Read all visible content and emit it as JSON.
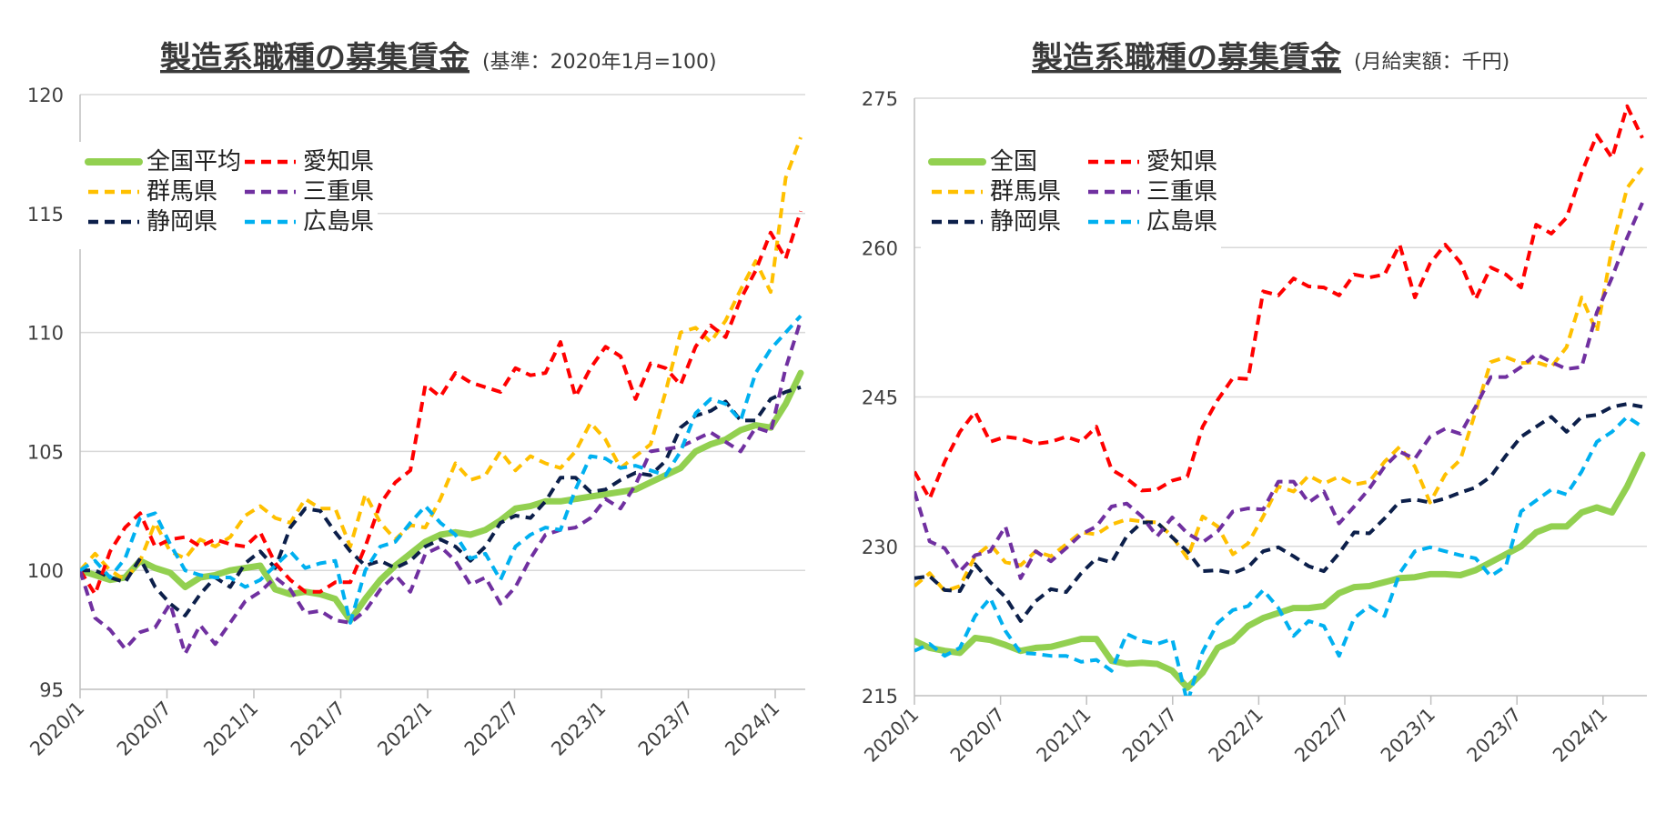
{
  "chart_data": [
    {
      "type": "line",
      "title": "製造系職種の募集賃金",
      "subtitle": "(基準：2020年1月=100)",
      "x_tick_labels": [
        "2020/1",
        "2020/7",
        "2021/1",
        "2021/7",
        "2022/1",
        "2022/7",
        "2023/1",
        "2023/7",
        "2024/1"
      ],
      "y_ticks": [
        95,
        100,
        105,
        110,
        115,
        120
      ],
      "ylim": [
        95,
        120
      ],
      "grid": true,
      "legend_position": "top-left",
      "series": [
        {
          "name": "全国平均",
          "color": "#92d050",
          "style": "solid",
          "values": [
            100.0,
            99.8,
            99.6,
            99.7,
            100.4,
            100.1,
            99.9,
            99.3,
            99.7,
            99.8,
            100.0,
            100.1,
            100.2,
            99.2,
            99.0,
            99.1,
            99.0,
            98.8,
            97.9,
            98.8,
            99.6,
            100.2,
            100.7,
            101.2,
            101.5,
            101.6,
            101.5,
            101.7,
            102.1,
            102.6,
            102.7,
            102.9,
            102.9,
            103.0,
            103.1,
            103.2,
            103.3,
            103.4,
            103.7,
            104.0,
            104.3,
            105.0,
            105.3,
            105.5,
            105.9,
            106.1,
            106.0,
            107.0,
            108.3
          ]
        },
        {
          "name": "群馬県",
          "color": "#ffc000",
          "style": "dashed",
          "values": [
            100.0,
            100.7,
            100.0,
            99.6,
            100.4,
            102.0,
            100.8,
            100.5,
            101.3,
            101.0,
            101.4,
            102.3,
            102.7,
            102.2,
            102.0,
            103.0,
            102.6,
            102.6,
            101.0,
            103.2,
            102.0,
            101.3,
            101.9,
            101.8,
            103.0,
            104.5,
            103.8,
            104.0,
            105.0,
            104.2,
            104.8,
            104.5,
            104.3,
            105.0,
            106.2,
            105.5,
            104.3,
            104.8,
            105.3,
            107.5,
            110.0,
            110.2,
            109.6,
            110.5,
            111.8,
            113.0,
            111.7,
            116.5,
            118.2
          ]
        },
        {
          "name": "静岡県",
          "color": "#0c1f4a",
          "style": "dashed",
          "values": [
            100.0,
            100.0,
            99.7,
            99.5,
            100.5,
            99.3,
            98.6,
            98.1,
            99.0,
            99.7,
            99.3,
            100.3,
            100.8,
            100.1,
            101.8,
            102.6,
            102.5,
            101.6,
            100.8,
            100.2,
            100.4,
            100.1,
            100.4,
            101.0,
            101.3,
            101.0,
            100.4,
            101.0,
            102.0,
            102.3,
            102.2,
            102.9,
            103.9,
            103.9,
            103.3,
            103.4,
            103.8,
            104.1,
            104.0,
            104.6,
            106.0,
            106.5,
            106.7,
            107.1,
            106.3,
            106.3,
            107.2,
            107.5,
            107.7
          ]
        },
        {
          "name": "愛知県",
          "color": "#ff0000",
          "style": "dashed",
          "values": [
            100.0,
            99.0,
            100.8,
            101.8,
            102.4,
            101.0,
            101.3,
            101.4,
            101.0,
            101.3,
            101.1,
            101.0,
            101.6,
            100.3,
            99.6,
            99.1,
            99.1,
            99.5,
            99.5,
            101.0,
            102.8,
            103.7,
            104.2,
            107.8,
            107.3,
            108.3,
            107.9,
            107.7,
            107.5,
            108.5,
            108.2,
            108.3,
            109.6,
            107.3,
            108.5,
            109.4,
            109.0,
            107.2,
            108.7,
            108.5,
            107.8,
            109.4,
            110.3,
            109.8,
            111.4,
            112.6,
            114.2,
            113.1,
            115.1
          ]
        },
        {
          "name": "三重県",
          "color": "#7030a0",
          "style": "dashed",
          "values": [
            100.0,
            98.0,
            97.5,
            96.7,
            97.4,
            97.6,
            98.6,
            96.5,
            97.7,
            96.9,
            97.8,
            98.7,
            99.1,
            99.7,
            99.2,
            98.2,
            98.3,
            97.9,
            97.8,
            98.3,
            99.2,
            99.8,
            99.1,
            100.7,
            101.0,
            100.4,
            99.4,
            99.7,
            98.6,
            99.3,
            100.5,
            101.5,
            101.7,
            101.8,
            102.2,
            103.0,
            102.6,
            103.6,
            105.0,
            105.1,
            105.2,
            105.5,
            105.8,
            105.4,
            105.0,
            106.0,
            105.8,
            108.5,
            110.5
          ]
        },
        {
          "name": "広島県",
          "color": "#00b0f0",
          "style": "dashed",
          "values": [
            100.0,
            100.4,
            99.7,
            100.5,
            102.2,
            102.4,
            101.1,
            100.0,
            99.8,
            99.7,
            99.7,
            99.3,
            99.6,
            100.2,
            100.8,
            100.1,
            100.3,
            100.4,
            97.8,
            100.0,
            101.0,
            101.2,
            102.0,
            102.7,
            102.0,
            101.5,
            100.5,
            100.7,
            99.6,
            101.0,
            101.5,
            101.8,
            101.7,
            103.4,
            104.8,
            104.7,
            104.3,
            104.4,
            104.2,
            104.0,
            105.0,
            106.6,
            107.2,
            107.0,
            106.3,
            108.3,
            109.3,
            110.0,
            110.7
          ]
        }
      ]
    },
    {
      "type": "line",
      "title": "製造系職種の募集賃金",
      "subtitle": "(月給実額：千円)",
      "x_tick_labels": [
        "2020/1",
        "2020/7",
        "2021/1",
        "2021/7",
        "2022/1",
        "2022/7",
        "2023/1",
        "2023/7",
        "2024/1"
      ],
      "y_ticks": [
        215,
        230,
        245,
        260,
        275
      ],
      "ylim": [
        215,
        275
      ],
      "grid": true,
      "legend_position": "top-left",
      "series": [
        {
          "name": "全国",
          "color": "#92d050",
          "style": "solid",
          "values": [
            220.5,
            219.8,
            219.5,
            219.3,
            220.8,
            220.6,
            220.1,
            219.5,
            219.8,
            219.9,
            220.3,
            220.7,
            220.7,
            218.5,
            218.2,
            218.3,
            218.2,
            217.5,
            215.8,
            217.3,
            219.8,
            220.5,
            222.0,
            222.8,
            223.3,
            223.8,
            223.8,
            224.0,
            225.3,
            225.9,
            226.0,
            226.4,
            226.8,
            226.9,
            227.2,
            227.2,
            227.1,
            227.6,
            228.4,
            229.2,
            230.0,
            231.4,
            232.0,
            232.0,
            233.4,
            233.9,
            233.4,
            236.0,
            239.2
          ]
        },
        {
          "name": "群馬県",
          "color": "#ffc000",
          "style": "dashed",
          "values": [
            226.0,
            227.3,
            225.5,
            226.0,
            229.0,
            230.2,
            228.4,
            228.1,
            229.5,
            229.0,
            230.2,
            231.4,
            231.2,
            232.2,
            232.7,
            232.5,
            232.4,
            231.0,
            228.8,
            233.0,
            232.0,
            229.2,
            230.3,
            233.0,
            236.0,
            235.5,
            237.1,
            236.3,
            237.0,
            236.2,
            236.5,
            238.5,
            240.0,
            238.0,
            234.4,
            237.2,
            238.7,
            243.5,
            248.5,
            249.0,
            248.4,
            248.5,
            248.0,
            250.0,
            255.0,
            251.5,
            260.0,
            266.0,
            268.0
          ]
        },
        {
          "name": "静岡県",
          "color": "#0c1f4a",
          "style": "dashed",
          "values": [
            226.8,
            227.0,
            225.6,
            225.5,
            228.2,
            226.4,
            224.9,
            222.5,
            224.5,
            225.7,
            225.4,
            227.3,
            228.8,
            228.4,
            231.0,
            232.4,
            232.4,
            230.9,
            229.5,
            227.5,
            227.6,
            227.3,
            227.9,
            229.5,
            229.9,
            229.0,
            228.0,
            227.5,
            229.3,
            231.4,
            231.3,
            232.8,
            234.5,
            234.7,
            234.4,
            234.8,
            235.4,
            235.9,
            237.0,
            239.1,
            241.0,
            242.0,
            243.0,
            241.5,
            243.0,
            243.2,
            244.0,
            244.3,
            244.0
          ]
        },
        {
          "name": "愛知県",
          "color": "#ff0000",
          "style": "dashed",
          "values": [
            237.5,
            234.8,
            238.5,
            241.5,
            243.5,
            240.5,
            241.0,
            240.8,
            240.3,
            240.5,
            241.0,
            240.5,
            242.0,
            237.7,
            236.8,
            235.6,
            235.7,
            236.6,
            237.0,
            242.0,
            244.7,
            246.9,
            246.8,
            255.6,
            255.2,
            256.9,
            256.1,
            256.0,
            255.2,
            257.3,
            257.0,
            257.3,
            260.3,
            255.0,
            258.4,
            260.3,
            258.5,
            254.8,
            258.0,
            257.3,
            256.0,
            262.3,
            261.4,
            263.0,
            267.5,
            271.3,
            269.0,
            274.2,
            271.0
          ]
        },
        {
          "name": "三重県",
          "color": "#7030a0",
          "style": "dashed",
          "values": [
            235.5,
            230.5,
            229.8,
            227.5,
            229.1,
            229.5,
            232.0,
            226.8,
            229.5,
            228.5,
            229.8,
            231.2,
            232.0,
            234.0,
            234.3,
            233.0,
            231.0,
            232.9,
            231.3,
            230.4,
            231.5,
            233.5,
            233.8,
            233.7,
            236.5,
            236.5,
            234.4,
            235.5,
            232.3,
            234.0,
            235.8,
            238.0,
            239.5,
            238.8,
            241.0,
            241.8,
            241.3,
            244.0,
            247.0,
            247.0,
            248.0,
            249.3,
            248.5,
            247.8,
            248.0,
            253.5,
            257.0,
            261.0,
            264.5
          ]
        },
        {
          "name": "広島県",
          "color": "#00b0f0",
          "style": "dashed",
          "values": [
            219.5,
            220.2,
            219.0,
            219.8,
            223.0,
            224.8,
            221.5,
            219.3,
            219.2,
            219.0,
            219.0,
            218.4,
            218.6,
            217.5,
            221.2,
            220.5,
            220.2,
            220.7,
            214.3,
            219.4,
            222.3,
            223.6,
            224.0,
            225.6,
            223.8,
            221.0,
            222.5,
            222.0,
            219.0,
            222.8,
            224.0,
            223.0,
            227.3,
            229.5,
            229.9,
            229.5,
            229.1,
            228.8,
            227.0,
            228.0,
            233.5,
            234.6,
            235.7,
            235.2,
            237.5,
            240.5,
            241.5,
            243.0,
            242.0
          ]
        }
      ]
    }
  ]
}
